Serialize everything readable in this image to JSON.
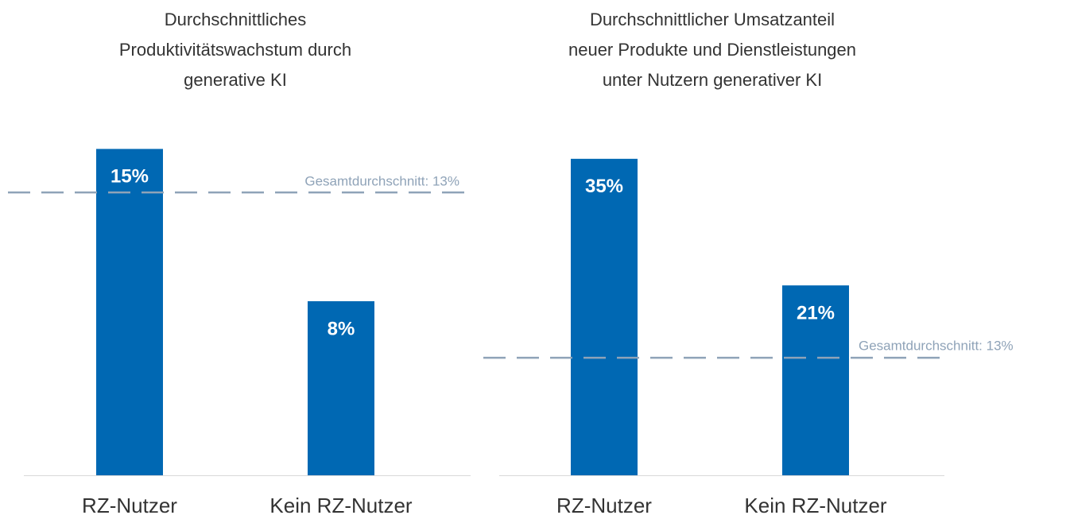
{
  "chart_data": [
    {
      "type": "bar",
      "title": [
        "Durchschnittliches",
        "Produktivitätswachstum durch",
        "generative KI"
      ],
      "categories": [
        "RZ-Nutzer",
        "Kein RZ-Nutzer"
      ],
      "values": [
        15,
        8
      ],
      "value_labels": [
        "15%",
        "8%"
      ],
      "color": "#0068b3",
      "ylim": [
        0,
        16
      ],
      "reference_line": {
        "value": 13,
        "label": "Gesamtdurchschnitt: 13%",
        "color": "#8fa3b8"
      }
    },
    {
      "type": "bar",
      "title": [
        "Durchschnittlicher Umsatzanteil",
        "neuer Produkte und Dienstleistungen",
        "unter Nutzern generativer KI"
      ],
      "categories": [
        "RZ-Nutzer",
        "Kein RZ-Nutzer"
      ],
      "values": [
        35,
        21
      ],
      "value_labels": [
        "35%",
        "21%"
      ],
      "color": "#0068b3",
      "ylim": [
        0,
        38.5
      ],
      "reference_line": {
        "value": 13,
        "label": "Gesamtdurchschnitt: 13%",
        "color": "#8fa3b8"
      }
    }
  ]
}
